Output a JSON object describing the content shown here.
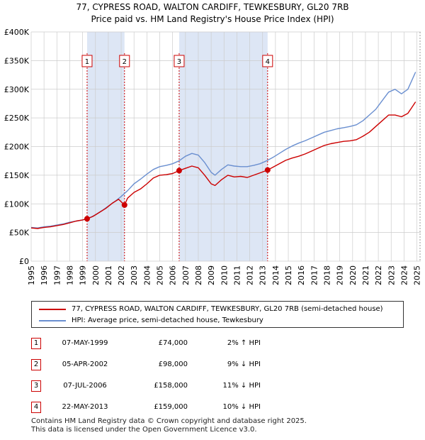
{
  "title_line1": "77, CYPRESS ROAD, WALTON CARDIFF, TEWKESBURY, GL20 7RB",
  "title_line2": "Price paid vs. HM Land Registry's House Price Index (HPI)",
  "colors": {
    "property": "#cc0000",
    "hpi": "#6a8fd0",
    "shade": "#dde6f5",
    "grid": "#cccccc"
  },
  "chart_data": {
    "type": "line",
    "title": "Price paid vs. HM Land Registry's House Price Index (HPI)",
    "xlabel": "",
    "ylabel": "",
    "xlim": [
      1995,
      2025.3
    ],
    "ylim": [
      0,
      400000
    ],
    "y_ticks": [
      0,
      50000,
      100000,
      150000,
      200000,
      250000,
      300000,
      350000,
      400000
    ],
    "y_tick_labels": [
      "£0",
      "£50K",
      "£100K",
      "£150K",
      "£200K",
      "£250K",
      "£300K",
      "£350K",
      "£400K"
    ],
    "x_ticks": [
      1995,
      1996,
      1997,
      1998,
      1999,
      2000,
      2001,
      2002,
      2003,
      2004,
      2005,
      2006,
      2007,
      2008,
      2009,
      2010,
      2011,
      2012,
      2013,
      2014,
      2015,
      2016,
      2017,
      2018,
      2019,
      2020,
      2021,
      2022,
      2023,
      2024,
      2025
    ],
    "x_tick_labels": [
      "1995",
      "1996",
      "1997",
      "1998",
      "1999",
      "2000",
      "2001",
      "2002",
      "2003",
      "2004",
      "2005",
      "2006",
      "2007",
      "2008",
      "2009",
      "2010",
      "2011",
      "2012",
      "2013",
      "2014",
      "2015",
      "2016",
      "2017",
      "2018",
      "2019",
      "2020",
      "2021",
      "2022",
      "2023",
      "2024",
      "2025"
    ],
    "shaded_ranges": [
      [
        1999.35,
        2002.26
      ],
      [
        2006.51,
        2013.39
      ]
    ],
    "series": [
      {
        "name": "77, CYPRESS ROAD, WALTON CARDIFF, TEWKESBURY, GL20 7RB (semi-detached house)",
        "color": "#cc0000",
        "x": [
          1995.0,
          1995.5,
          1996.0,
          1996.5,
          1997.0,
          1997.5,
          1998.0,
          1998.5,
          1999.0,
          1999.35,
          1999.8,
          2000.3,
          2000.8,
          2001.3,
          2001.8,
          2002.26,
          2002.5,
          2003.0,
          2003.5,
          2004.0,
          2004.5,
          2005.0,
          2005.5,
          2006.0,
          2006.51,
          2007.0,
          2007.5,
          2008.0,
          2008.5,
          2009.0,
          2009.3,
          2009.8,
          2010.3,
          2010.8,
          2011.3,
          2011.8,
          2012.3,
          2012.8,
          2013.39,
          2013.8,
          2014.3,
          2014.8,
          2015.3,
          2015.8,
          2016.3,
          2016.8,
          2017.3,
          2017.8,
          2018.3,
          2018.8,
          2019.3,
          2019.8,
          2020.3,
          2020.8,
          2021.3,
          2021.8,
          2022.3,
          2022.8,
          2023.3,
          2023.8,
          2024.3,
          2024.6,
          2024.9
        ],
        "values": [
          58000,
          57000,
          59000,
          60000,
          62000,
          64000,
          67000,
          70000,
          72000,
          74000,
          78000,
          85000,
          92000,
          101000,
          108000,
          98000,
          110000,
          120000,
          126000,
          135000,
          145000,
          150000,
          151000,
          153000,
          158000,
          162000,
          166000,
          163000,
          150000,
          135000,
          132000,
          142000,
          150000,
          147000,
          148000,
          146000,
          150000,
          154000,
          159000,
          164000,
          170000,
          176000,
          180000,
          183000,
          187000,
          192000,
          197000,
          202000,
          205000,
          207000,
          209000,
          210000,
          212000,
          218000,
          225000,
          235000,
          245000,
          255000,
          255000,
          252000,
          258000,
          268000,
          278000
        ]
      },
      {
        "name": "HPI: Average price, semi-detached house, Tewkesbury",
        "color": "#6a8fd0",
        "x": [
          1995.0,
          1995.5,
          1996.0,
          1996.5,
          1997.0,
          1997.5,
          1998.0,
          1998.5,
          1999.0,
          1999.5,
          2000.0,
          2000.5,
          2001.0,
          2001.5,
          2002.0,
          2002.5,
          2003.0,
          2003.5,
          2004.0,
          2004.5,
          2005.0,
          2005.5,
          2006.0,
          2006.5,
          2007.0,
          2007.5,
          2008.0,
          2008.5,
          2009.0,
          2009.3,
          2009.8,
          2010.3,
          2010.8,
          2011.3,
          2011.8,
          2012.3,
          2012.8,
          2013.3,
          2013.8,
          2014.3,
          2014.8,
          2015.3,
          2015.8,
          2016.3,
          2016.8,
          2017.3,
          2017.8,
          2018.3,
          2018.8,
          2019.3,
          2019.8,
          2020.3,
          2020.8,
          2021.3,
          2021.8,
          2022.3,
          2022.8,
          2023.3,
          2023.8,
          2024.3,
          2024.6,
          2024.9
        ],
        "values": [
          59000,
          58000,
          60000,
          61000,
          63000,
          65000,
          68000,
          70000,
          72000,
          75000,
          81000,
          88000,
          96000,
          104000,
          113000,
          123000,
          135000,
          143000,
          152000,
          160000,
          165000,
          167000,
          170000,
          175000,
          183000,
          188000,
          185000,
          172000,
          155000,
          150000,
          160000,
          168000,
          166000,
          165000,
          165000,
          167000,
          170000,
          175000,
          181000,
          188000,
          195000,
          201000,
          206000,
          210000,
          215000,
          220000,
          225000,
          228000,
          231000,
          233000,
          235000,
          238000,
          245000,
          255000,
          265000,
          280000,
          295000,
          300000,
          292000,
          300000,
          315000,
          330000
        ]
      }
    ],
    "transactions": [
      {
        "label": "1",
        "x": 1999.35,
        "value": 74000
      },
      {
        "label": "2",
        "x": 2002.26,
        "value": 98000
      },
      {
        "label": "3",
        "x": 2006.51,
        "value": 158000
      },
      {
        "label": "4",
        "x": 2013.39,
        "value": 159000
      }
    ]
  },
  "legend": {
    "property_label": "77, CYPRESS ROAD, WALTON CARDIFF, TEWKESBURY, GL20 7RB (semi-detached house)",
    "hpi_label": "HPI: Average price, semi-detached house, Tewkesbury"
  },
  "transactions_table": [
    {
      "num": "1",
      "date": "07-MAY-1999",
      "price": "£74,000",
      "hpi": "2% ↑ HPI"
    },
    {
      "num": "2",
      "date": "05-APR-2002",
      "price": "£98,000",
      "hpi": "9% ↓ HPI"
    },
    {
      "num": "3",
      "date": "07-JUL-2006",
      "price": "£158,000",
      "hpi": "11% ↓ HPI"
    },
    {
      "num": "4",
      "date": "22-MAY-2013",
      "price": "£159,000",
      "hpi": "10% ↓ HPI"
    }
  ],
  "footer_line1": "Contains HM Land Registry data © Crown copyright and database right 2025.",
  "footer_line2": "This data is licensed under the Open Government Licence v3.0."
}
